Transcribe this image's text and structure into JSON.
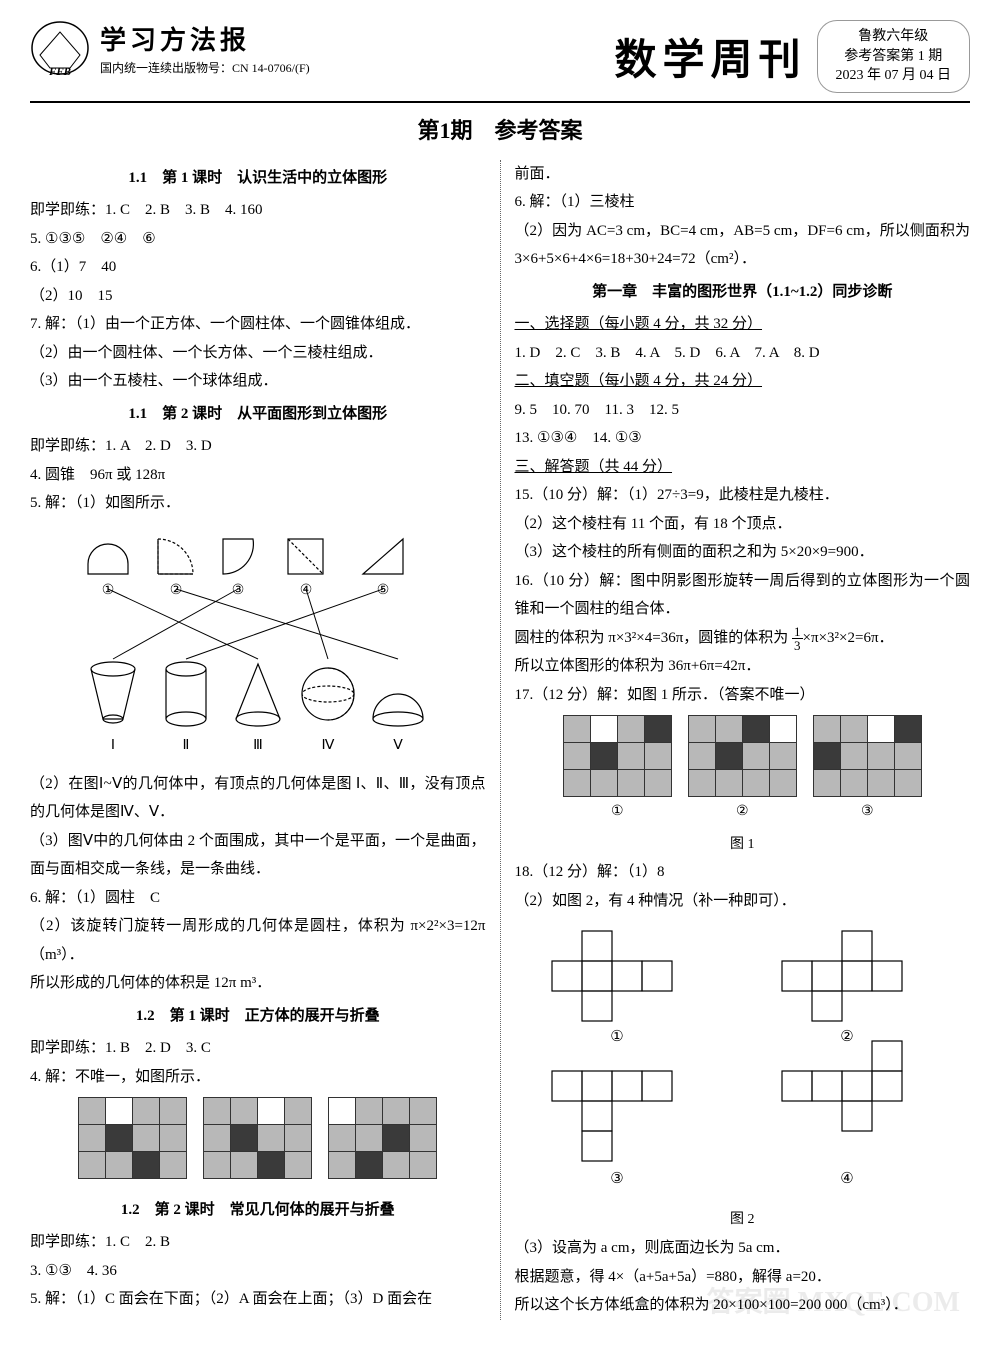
{
  "header": {
    "newspaper_name": "学习方法报",
    "pub_code": "国内统一连续出版物号：CN 14-0706/(F)",
    "main_title": "数学周刊",
    "issue_line1": "鲁教六年级",
    "issue_line2": "参考答案第 1 期",
    "issue_line3": "2023 年 07 月 04 日",
    "logo_text": "FFB"
  },
  "issue_title": "第1期　参考答案",
  "left": {
    "s1_title": "1.1　第 1 课时　认识生活中的立体图形",
    "s1_a": "即学即练：1. C　2. B　3. B　4. 160",
    "s1_b": "5. ①③⑤　②④　⑥",
    "s1_c": "6.（1）7　40",
    "s1_d": "（2）10　15",
    "s1_e": "7. 解：（1）由一个正方体、一个圆柱体、一个圆锥体组成．",
    "s1_f": "（2）由一个圆柱体、一个长方体、一个三棱柱组成．",
    "s1_g": "（3）由一个五棱柱、一个球体组成．",
    "s2_title": "1.1　第 2 课时　从平面图形到立体图形",
    "s2_a": "即学即练：1. A　2. D　3. D",
    "s2_b": "4. 圆锥　96π 或 128π",
    "s2_c": "5. 解：（1）如图所示．",
    "fig1_nums": "①　　②　　③　　④　　⑤",
    "fig1_roman": "Ⅰ　　Ⅱ　　Ⅲ　　Ⅳ　　Ⅴ",
    "s2_d": "（2）在图Ⅰ~Ⅴ的几何体中，有顶点的几何体是图 Ⅰ、Ⅱ、Ⅲ，没有顶点的几何体是图Ⅳ、Ⅴ．",
    "s2_e": "（3）图Ⅴ中的几何体由 2 个面围成，其中一个是平面，一个是曲面，面与面相交成一条线，是一条曲线．",
    "s2_f": "6. 解：（1）圆柱　C",
    "s2_g": "（2）该旋转门旋转一周形成的几何体是圆柱，体积为 π×2²×3=12π（m³）．",
    "s2_h": "所以形成的几何体的体积是 12π m³．",
    "s3_title": "1.2　第 1 课时　正方体的展开与折叠",
    "s3_a": "即学即练：1. B　2. D　3. C",
    "s3_b": "4. 解：不唯一，如图所示．",
    "s4_title": "1.2　第 2 课时　常见几何体的展开与折叠",
    "s4_a": "即学即练：1. C　2. B",
    "s4_b": "3. ①③　4. 36",
    "s4_c": "5. 解：（1）C 面会在下面；（2）A 面会在上面；（3）D 面会在"
  },
  "right": {
    "r0": "前面．",
    "r1": "6. 解：（1）三棱柱",
    "r2": "（2）因为 AC=3 cm，BC=4 cm，AB=5 cm，DF=6 cm，所以侧面积为 3×6+5×6+4×6=18+30+24=72（cm²）．",
    "chap_title": "第一章　丰富的图形世界（1.1~1.2）同步诊断",
    "r3": "一、选择题（每小题 4 分，共 32 分）",
    "r4": "1. D　2. C　3. B　4. A　5. D　6. A　7. A　8. D",
    "r5": "二、填空题（每小题 4 分，共 24 分）",
    "r6": "9. 5　10. 70　11. 3　12. 5",
    "r7": "13. ①③④　14. ①③",
    "r8": "三、解答题（共 44 分）",
    "r9": "15.（10 分）解：（1）27÷3=9，此棱柱是九棱柱．",
    "r10": "（2）这个棱柱有 11 个面，有 18 个顶点．",
    "r11": "（3）这个棱柱的所有侧面的面积之和为 5×20×9=900．",
    "r12": "16.（10 分）解：图中阴影图形旋转一周后得到的立体图形为一个圆锥和一个圆柱的组合体．",
    "r13a": "圆柱的体积为 π×3²×4=36π，圆锥的体积为 ",
    "r13b": "×π×3²×2=6π．",
    "r14": "所以立体图形的体积为 36π+6π=42π．",
    "r15": "17.（12 分）解：如图 1 所示．（答案不唯一）",
    "fig1_label": "图 1",
    "r16": "18.（12 分）解：（1）8",
    "r17": "（2）如图 2，有 4 种情况（补一种即可）．",
    "fig2_label": "图 2",
    "r18": "（3）设高为 a cm，则底面边长为 5a cm．",
    "r19": "根据题意，得 4×（a+5a+5a）=880，解得 a=20．",
    "r20": "所以这个长方体纸盒的体积为 20×100×100=200 000（cm³）．",
    "circ1": "①",
    "circ2": "②",
    "circ3": "③",
    "circ4": "④"
  },
  "grids": {
    "left_set": [
      [
        [
          1,
          0,
          1,
          1
        ],
        [
          1,
          2,
          1,
          1
        ],
        [
          1,
          1,
          2,
          1
        ]
      ],
      [
        [
          1,
          1,
          0,
          1
        ],
        [
          1,
          2,
          1,
          1
        ],
        [
          1,
          1,
          2,
          1
        ]
      ],
      [
        [
          0,
          1,
          1,
          1
        ],
        [
          1,
          1,
          2,
          1
        ],
        [
          1,
          2,
          1,
          1
        ]
      ]
    ],
    "right_set": [
      [
        [
          1,
          0,
          1,
          2
        ],
        [
          1,
          2,
          1,
          1
        ],
        [
          1,
          1,
          1,
          1
        ]
      ],
      [
        [
          1,
          1,
          2,
          0
        ],
        [
          1,
          2,
          1,
          1
        ],
        [
          1,
          1,
          1,
          1
        ]
      ],
      [
        [
          1,
          1,
          0,
          2
        ],
        [
          2,
          1,
          1,
          1
        ],
        [
          1,
          1,
          1,
          1
        ]
      ]
    ]
  },
  "colors": {
    "bg": "#ffffff",
    "text": "#000000",
    "grey": "#b8b8b8",
    "dark": "#3a3a3a",
    "border": "#333333"
  },
  "watermark": "答案圈 MXQE.COM"
}
